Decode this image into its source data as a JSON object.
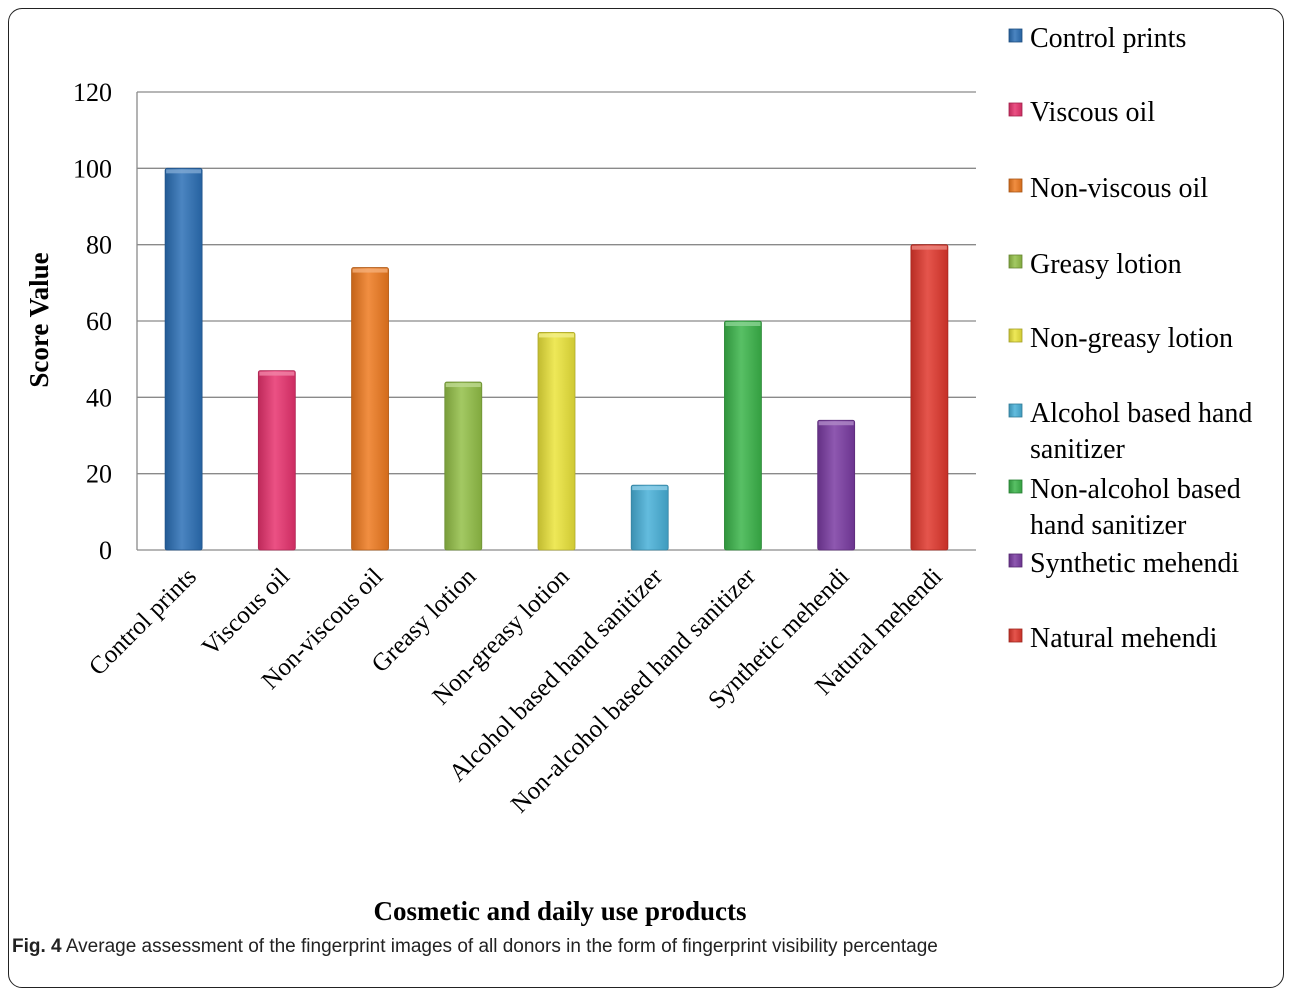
{
  "chart_data": {
    "type": "bar",
    "categories": [
      "Control prints",
      "Viscous oil",
      "Non-viscous oil",
      "Greasy lotion",
      "Non-greasy lotion",
      "Alcohol based hand sanitizer",
      "Non-alcohol based hand sanitizer",
      "Synthetic mehendi",
      "Natural mehendi"
    ],
    "values": [
      100,
      47,
      74,
      44,
      57,
      17,
      60,
      34,
      80
    ],
    "colors": [
      "#2b6fb6",
      "#e8326e",
      "#ef7a1f",
      "#93c047",
      "#ebe43a",
      "#48b0d8",
      "#3bb54a",
      "#7a3ba2",
      "#e0372c"
    ],
    "legend": [
      [
        "Control prints"
      ],
      [
        "Viscous oil"
      ],
      [
        "Non-viscous oil"
      ],
      [
        "Greasy lotion"
      ],
      [
        "Non-greasy lotion"
      ],
      [
        "Alcohol based hand",
        "sanitizer"
      ],
      [
        "Non-alcohol based",
        "hand sanitizer"
      ],
      [
        "Synthetic mehendi"
      ],
      [
        "Natural mehendi"
      ]
    ],
    "ylabel": "Score Value",
    "xlabel": "Cosmetic and daily use products",
    "ylim": [
      0,
      120
    ],
    "yticks": [
      0,
      20,
      40,
      60,
      80,
      100,
      120
    ],
    "grid": true,
    "legend_position": "right"
  },
  "caption": {
    "label": "Fig. 4",
    "text": " Average assessment of the fingerprint images of all donors in the form of fingerprint visibility percentage"
  }
}
